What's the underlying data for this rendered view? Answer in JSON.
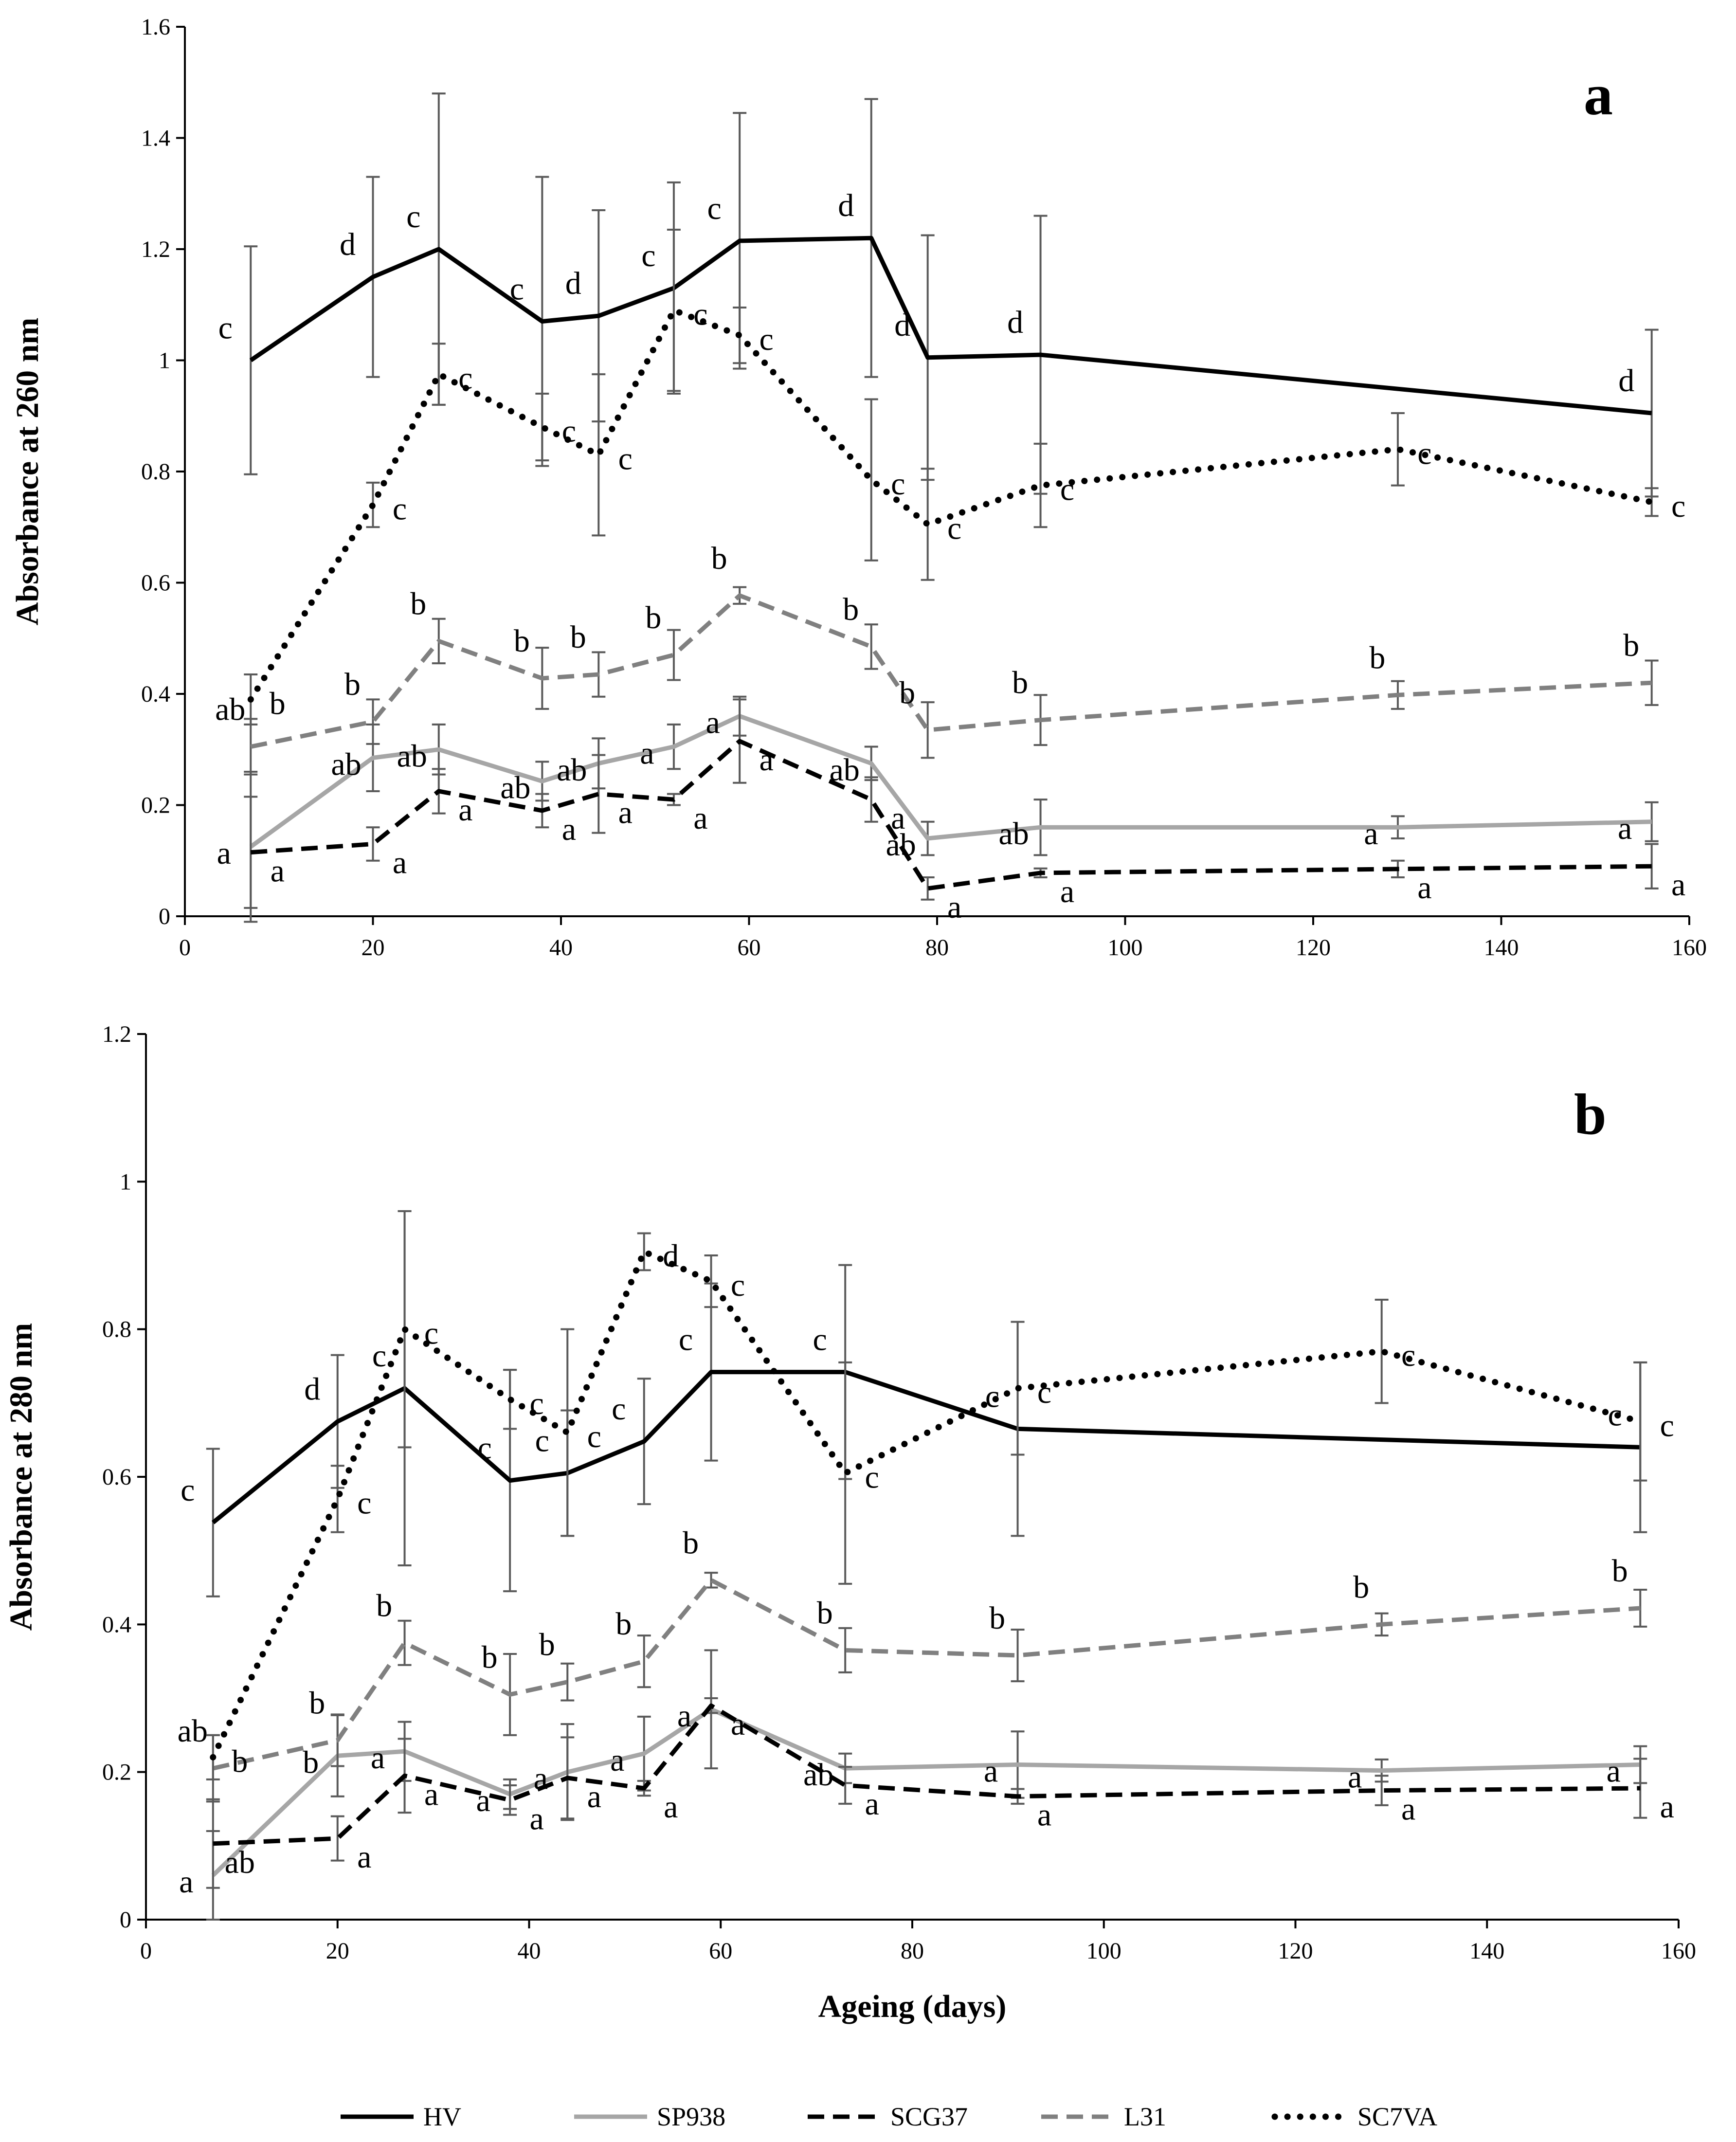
{
  "colors": {
    "HV": "#000000",
    "SP938": "#a6a6a6",
    "SCG37": "#000000",
    "L31": "#808080",
    "SC7VA": "#000000",
    "error_bar": "#5a5a5a",
    "axis": "#000000"
  },
  "legend": {
    "position": "bottom",
    "items": [
      "HV",
      "SP938",
      "SCG37",
      "L31",
      "SC7VA"
    ]
  },
  "chart_data": [
    {
      "type": "line",
      "panel_label": "a",
      "xlabel": "",
      "ylabel": "Absorbance  at 260 nm",
      "xlim": [
        0,
        160
      ],
      "ylim": [
        0,
        1.6
      ],
      "xticks": [
        "0",
        "20",
        "40",
        "60",
        "80",
        "100",
        "120",
        "140",
        "160"
      ],
      "yticks": [
        "0",
        "0.2",
        "0.4",
        "0.6",
        "0.8",
        "1",
        "1.2",
        "1.4",
        "1.6"
      ],
      "grid": false,
      "series": [
        {
          "name": "HV",
          "style": "solid",
          "x": [
            7,
            20,
            27,
            38,
            44,
            52,
            59,
            73,
            79,
            91,
            156
          ],
          "y": [
            1.0,
            1.15,
            1.2,
            1.07,
            1.08,
            1.13,
            1.215,
            1.22,
            1.005,
            1.01,
            0.905
          ],
          "err": [
            0.205,
            0.18,
            0.28,
            0.26,
            0.19,
            0.19,
            0.23,
            0.25,
            0.22,
            0.25,
            0.15
          ],
          "labels": [
            "c",
            "d",
            "c",
            "c",
            "d",
            "c",
            "c",
            "d",
            "d",
            "d",
            "d"
          ]
        },
        {
          "name": "SP938",
          "style": "solid",
          "x": [
            7,
            20,
            27,
            38,
            44,
            52,
            59,
            73,
            79,
            91,
            129,
            156
          ],
          "y": [
            0.125,
            0.285,
            0.3,
            0.243,
            0.275,
            0.305,
            0.36,
            0.275,
            0.14,
            0.16,
            0.16,
            0.17
          ],
          "err": [
            0.135,
            0.06,
            0.045,
            0.035,
            0.045,
            0.04,
            0.035,
            0.03,
            0.03,
            0.05,
            0.02,
            0.035
          ],
          "labels": [
            "a",
            "ab",
            "ab",
            "ab",
            "ab",
            "a",
            "a",
            "ab",
            "ab",
            "ab",
            "a",
            "a"
          ]
        },
        {
          "name": "SCG37",
          "style": "dashed",
          "x": [
            7,
            20,
            27,
            38,
            44,
            52,
            59,
            73,
            79,
            91,
            129,
            156
          ],
          "y": [
            0.115,
            0.13,
            0.225,
            0.19,
            0.22,
            0.21,
            0.315,
            0.21,
            0.05,
            0.078,
            0.085,
            0.09
          ],
          "err": [
            0.1,
            0.03,
            0.04,
            0.03,
            0.07,
            0.01,
            0.075,
            0.04,
            0.02,
            0.008,
            0.015,
            0.04
          ],
          "labels": [
            "a",
            "a",
            "a",
            "a",
            "a",
            "a",
            "a",
            "a",
            "a",
            "a",
            "a",
            "a"
          ]
        },
        {
          "name": "L31",
          "style": "dashed",
          "x": [
            7,
            20,
            27,
            38,
            44,
            52,
            59,
            73,
            79,
            91,
            129,
            156
          ],
          "y": [
            0.305,
            0.35,
            0.495,
            0.428,
            0.435,
            0.47,
            0.577,
            0.485,
            0.335,
            0.353,
            0.398,
            0.42
          ],
          "err": [
            0.05,
            0.04,
            0.04,
            0.055,
            0.04,
            0.045,
            0.015,
            0.04,
            0.05,
            0.045,
            0.025,
            0.04
          ],
          "labels": [
            "ab",
            "b",
            "b",
            "b",
            "b",
            "b",
            "b",
            "b",
            "b",
            "b",
            "b",
            "b"
          ]
        },
        {
          "name": "SC7VA",
          "style": "dotted",
          "x": [
            7,
            20,
            27,
            38,
            44,
            52,
            59,
            73,
            79,
            91,
            129,
            156
          ],
          "y": [
            0.39,
            0.74,
            0.975,
            0.88,
            0.83,
            1.09,
            1.045,
            0.785,
            0.705,
            0.775,
            0.84,
            0.745
          ],
          "err": [
            0.045,
            0.04,
            0.055,
            0.06,
            0.145,
            0.145,
            0.05,
            0.145,
            0.1,
            0.075,
            0.065,
            0.025
          ],
          "labels": [
            "b",
            "c",
            "c",
            "c",
            "c",
            "c",
            "c",
            "c",
            "c",
            "c",
            "c",
            "c"
          ]
        }
      ]
    },
    {
      "type": "line",
      "panel_label": "b",
      "xlabel": "Ageing (days)",
      "ylabel": "Absorbance  at 280 nm",
      "xlim": [
        0,
        160
      ],
      "ylim": [
        0,
        1.2
      ],
      "xticks": [
        "0",
        "20",
        "40",
        "60",
        "80",
        "100",
        "120",
        "140",
        "160"
      ],
      "yticks": [
        "0",
        "0.2",
        "0.4",
        "0.6",
        "0.8",
        "1",
        "1.2"
      ],
      "grid": false,
      "series": [
        {
          "name": "HV",
          "style": "solid",
          "x": [
            7,
            20,
            27,
            38,
            44,
            52,
            59,
            73,
            91,
            156
          ],
          "y": [
            0.538,
            0.675,
            0.72,
            0.595,
            0.605,
            0.648,
            0.742,
            0.742,
            0.665,
            0.64
          ],
          "err": [
            0.1,
            0.09,
            0.24,
            0.15,
            0.085,
            0.085,
            0.12,
            0.145,
            0.145,
            0.115
          ],
          "labels": [
            "c",
            "d",
            "c",
            "c",
            "c",
            "c",
            "c",
            "c",
            "c",
            "c"
          ]
        },
        {
          "name": "SP938",
          "style": "solid",
          "x": [
            7,
            20,
            27,
            38,
            44,
            52,
            59,
            73,
            91,
            129,
            156
          ],
          "y": [
            0.06,
            0.222,
            0.228,
            0.17,
            0.2,
            0.225,
            0.285,
            0.205,
            0.21,
            0.202,
            0.21
          ],
          "err": [
            0.06,
            0.055,
            0.04,
            0.02,
            0.065,
            0.05,
            0.08,
            0.02,
            0.045,
            0.015,
            0.025
          ],
          "labels": [
            "a",
            "b",
            "a",
            "a",
            "a",
            "a",
            "a",
            "ab",
            "a",
            "a",
            "a"
          ]
        },
        {
          "name": "SCG37",
          "style": "dashed",
          "x": [
            7,
            20,
            27,
            38,
            44,
            52,
            59,
            73,
            91,
            129,
            156
          ],
          "y": [
            0.103,
            0.11,
            0.195,
            0.162,
            0.192,
            0.178,
            0.29,
            0.182,
            0.167,
            0.175,
            0.178
          ],
          "err": [
            0.06,
            0.03,
            0.05,
            0.02,
            0.055,
            0.01,
            0.01,
            0.025,
            0.01,
            0.02,
            0.04
          ],
          "labels": [
            "ab",
            "a",
            "a",
            "a",
            "a",
            "a",
            "a",
            "a",
            "a",
            "a",
            "a"
          ]
        },
        {
          "name": "L31",
          "style": "dashed",
          "x": [
            7,
            20,
            27,
            38,
            44,
            52,
            59,
            73,
            91,
            129,
            156
          ],
          "y": [
            0.205,
            0.243,
            0.375,
            0.305,
            0.322,
            0.35,
            0.46,
            0.365,
            0.358,
            0.4,
            0.422
          ],
          "err": [
            0.045,
            0.035,
            0.03,
            0.055,
            0.025,
            0.035,
            0.01,
            0.03,
            0.035,
            0.015,
            0.025
          ],
          "labels": [
            "ab",
            "b",
            "b",
            "b",
            "b",
            "b",
            "b",
            "b",
            "b",
            "b",
            "b"
          ]
        },
        {
          "name": "SC7VA",
          "style": "dotted",
          "x": [
            7,
            20,
            27,
            38,
            44,
            52,
            59,
            73,
            91,
            129,
            156
          ],
          "y": [
            0.22,
            0.57,
            0.8,
            0.705,
            0.66,
            0.905,
            0.865,
            0.605,
            0.72,
            0.77,
            0.675
          ],
          "err": [
            0.03,
            0.045,
            0.16,
            0.04,
            0.14,
            0.025,
            0.035,
            0.15,
            0.09,
            0.07,
            0.08
          ],
          "labels": [
            "b",
            "c",
            "c",
            "c",
            "c",
            "d",
            "c",
            "c",
            "c",
            "c",
            "c"
          ]
        }
      ]
    }
  ]
}
